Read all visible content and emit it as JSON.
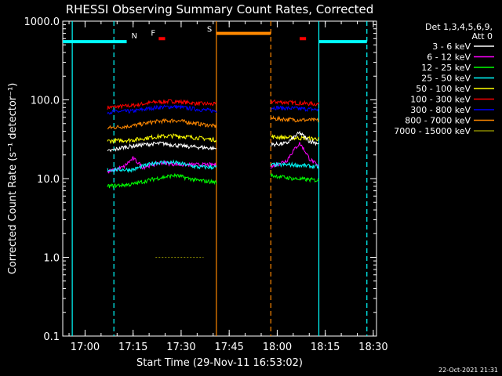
{
  "chart_data": {
    "type": "line",
    "title": "RHESSI Observing Summary Count Rates, Corrected",
    "xlabel": "Start Time (29-Nov-11 16:53:02)",
    "ylabel": "Corrected Count Rate (s⁻¹ detector⁻¹)",
    "yscale": "log",
    "ylim": [
      0.1,
      1000
    ],
    "xlim": [
      "16:53:02",
      "18:31:00"
    ],
    "x_ticks": [
      "17:00",
      "17:15",
      "17:30",
      "17:45",
      "18:00",
      "18:15",
      "18:30"
    ],
    "y_ticks": [
      "0.1",
      "1.0",
      "10.0",
      "100.0",
      "1000.0"
    ],
    "footer_date": "22-Oct-2021 21:31",
    "legend": {
      "placement": "right",
      "header_line1": "Det 1,3,4,5,6,9,",
      "header_line2": "Att 0",
      "entries": [
        {
          "label": "3 - 6 keV",
          "color": "#ffffff"
        },
        {
          "label": "6 - 12 keV",
          "color": "#ff00ff"
        },
        {
          "label": "12 - 25 keV",
          "color": "#00ff00"
        },
        {
          "label": "25 - 50 keV",
          "color": "#00ffff"
        },
        {
          "label": "50 - 100 keV",
          "color": "#ffff00"
        },
        {
          "label": "100 - 300 keV",
          "color": "#ff0000"
        },
        {
          "label": "300 - 800 keV",
          "color": "#0000ff"
        },
        {
          "label": "800 - 7000 keV",
          "color": "#ff8800"
        },
        {
          "label": "7000 - 15000 keV",
          "color": "#888800"
        }
      ]
    },
    "segments": [
      [
        "17:07",
        "17:41"
      ],
      [
        "17:58",
        "18:13"
      ]
    ],
    "series": [
      {
        "color": "#ff0000",
        "points": [
          [
            "17:07",
            80
          ],
          [
            "17:15",
            85
          ],
          [
            "17:22",
            94
          ],
          [
            "17:28",
            96
          ],
          [
            "17:35",
            90
          ],
          [
            "17:41",
            88
          ],
          [
            "17:58",
            95
          ],
          [
            "18:05",
            92
          ],
          [
            "18:13",
            88
          ]
        ]
      },
      {
        "color": "#0000ff",
        "points": [
          [
            "17:07",
            70
          ],
          [
            "17:15",
            72
          ],
          [
            "17:22",
            80
          ],
          [
            "17:28",
            82
          ],
          [
            "17:35",
            76
          ],
          [
            "17:41",
            72
          ],
          [
            "17:58",
            80
          ],
          [
            "18:05",
            78
          ],
          [
            "18:13",
            75
          ]
        ]
      },
      {
        "color": "#ff8800",
        "points": [
          [
            "17:07",
            44
          ],
          [
            "17:15",
            47
          ],
          [
            "17:22",
            53
          ],
          [
            "17:28",
            55
          ],
          [
            "17:35",
            50
          ],
          [
            "17:41",
            46
          ],
          [
            "17:58",
            58
          ],
          [
            "18:05",
            56
          ],
          [
            "18:13",
            55
          ]
        ]
      },
      {
        "color": "#ffff00",
        "points": [
          [
            "17:07",
            30
          ],
          [
            "17:15",
            31
          ],
          [
            "17:22",
            34
          ],
          [
            "17:28",
            35
          ],
          [
            "17:35",
            33
          ],
          [
            "17:41",
            31
          ],
          [
            "17:58",
            34
          ],
          [
            "18:05",
            33
          ],
          [
            "18:13",
            32
          ]
        ]
      },
      {
        "color": "#ffffff",
        "points": [
          [
            "17:07",
            22
          ],
          [
            "17:12",
            25
          ],
          [
            "17:18",
            27
          ],
          [
            "17:24",
            28
          ],
          [
            "17:30",
            26
          ],
          [
            "17:36",
            25
          ],
          [
            "17:41",
            24
          ],
          [
            "17:58",
            27
          ],
          [
            "18:03",
            28
          ],
          [
            "18:07",
            38
          ],
          [
            "18:10",
            30
          ],
          [
            "18:13",
            28
          ]
        ]
      },
      {
        "color": "#ff00ff",
        "points": [
          [
            "17:07",
            12
          ],
          [
            "17:12",
            14
          ],
          [
            "17:15",
            18
          ],
          [
            "17:18",
            14
          ],
          [
            "17:24",
            16
          ],
          [
            "17:30",
            15
          ],
          [
            "17:41",
            15
          ],
          [
            "17:58",
            14
          ],
          [
            "18:03",
            17
          ],
          [
            "18:07",
            28
          ],
          [
            "18:10",
            18
          ],
          [
            "18:13",
            14
          ]
        ]
      },
      {
        "color": "#00ffff",
        "points": [
          [
            "17:07",
            13
          ],
          [
            "17:15",
            13
          ],
          [
            "17:22",
            16
          ],
          [
            "17:28",
            16
          ],
          [
            "17:35",
            14
          ],
          [
            "17:41",
            14
          ],
          [
            "17:58",
            15
          ],
          [
            "18:05",
            15
          ],
          [
            "18:13",
            14
          ]
        ]
      },
      {
        "color": "#00ff00",
        "points": [
          [
            "17:07",
            8
          ],
          [
            "17:15",
            8.5
          ],
          [
            "17:22",
            10
          ],
          [
            "17:28",
            11
          ],
          [
            "17:35",
            9.5
          ],
          [
            "17:41",
            9
          ],
          [
            "17:58",
            11
          ],
          [
            "18:05",
            10
          ],
          [
            "18:13",
            9.5
          ]
        ]
      },
      {
        "color": "#888800",
        "points": [
          [
            "17:22",
            1.0
          ],
          [
            "17:37",
            1.0
          ]
        ]
      }
    ],
    "flag_bars": [
      {
        "label": "N",
        "color": "#00ffff",
        "y": 550,
        "spans": [
          [
            "16:53:02",
            "17:13"
          ],
          [
            "18:13",
            "18:28"
          ]
        ]
      },
      {
        "label": "F",
        "color": "#ff0000",
        "y": 600,
        "spans": [
          [
            "17:23",
            "17:25"
          ],
          [
            "18:07",
            "18:09"
          ]
        ]
      },
      {
        "label": "S",
        "color": "#ff8800",
        "y": 700,
        "spans": [
          [
            "17:41",
            "17:58"
          ]
        ]
      }
    ],
    "vertical_lines": [
      {
        "time": "16:56",
        "color": "#00ffff",
        "style": "solid"
      },
      {
        "time": "17:09",
        "color": "#00ffff",
        "style": "dashed"
      },
      {
        "time": "17:41",
        "color": "#ff8800",
        "style": "solid"
      },
      {
        "time": "17:58",
        "color": "#ff8800",
        "style": "dashed"
      },
      {
        "time": "18:13",
        "color": "#00ffff",
        "style": "solid"
      },
      {
        "time": "18:28",
        "color": "#00ffff",
        "style": "dashed"
      }
    ]
  }
}
